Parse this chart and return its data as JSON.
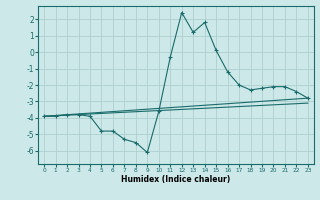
{
  "xlabel": "Humidex (Indice chaleur)",
  "ylabel": "",
  "bg_color": "#cce8e8",
  "line_color": "#1a6b6b",
  "grid_color": "#afd0d0",
  "xlim": [
    -0.5,
    23.5
  ],
  "ylim": [
    -6.8,
    2.8
  ],
  "xticks": [
    0,
    1,
    2,
    3,
    4,
    5,
    6,
    7,
    8,
    9,
    10,
    11,
    12,
    13,
    14,
    15,
    16,
    17,
    18,
    19,
    20,
    21,
    22,
    23
  ],
  "yticks": [
    -6,
    -5,
    -4,
    -3,
    -2,
    -1,
    0,
    1,
    2
  ],
  "line1_x": [
    0,
    1,
    2,
    3,
    4,
    5,
    6,
    7,
    8,
    9,
    10,
    11,
    12,
    13,
    14,
    15,
    16,
    17,
    18,
    19,
    20,
    21,
    22,
    23
  ],
  "line1_y": [
    -3.9,
    -3.9,
    -3.8,
    -3.8,
    -3.9,
    -4.8,
    -4.8,
    -5.3,
    -5.5,
    -6.1,
    -3.6,
    -0.3,
    2.4,
    1.2,
    1.8,
    0.1,
    -1.2,
    -2.0,
    -2.3,
    -2.2,
    -2.1,
    -2.1,
    -2.4,
    -2.8
  ],
  "line2_x": [
    0,
    23
  ],
  "line2_y": [
    -3.9,
    -2.8
  ],
  "line3_x": [
    0,
    23
  ],
  "line3_y": [
    -3.9,
    -3.1
  ]
}
